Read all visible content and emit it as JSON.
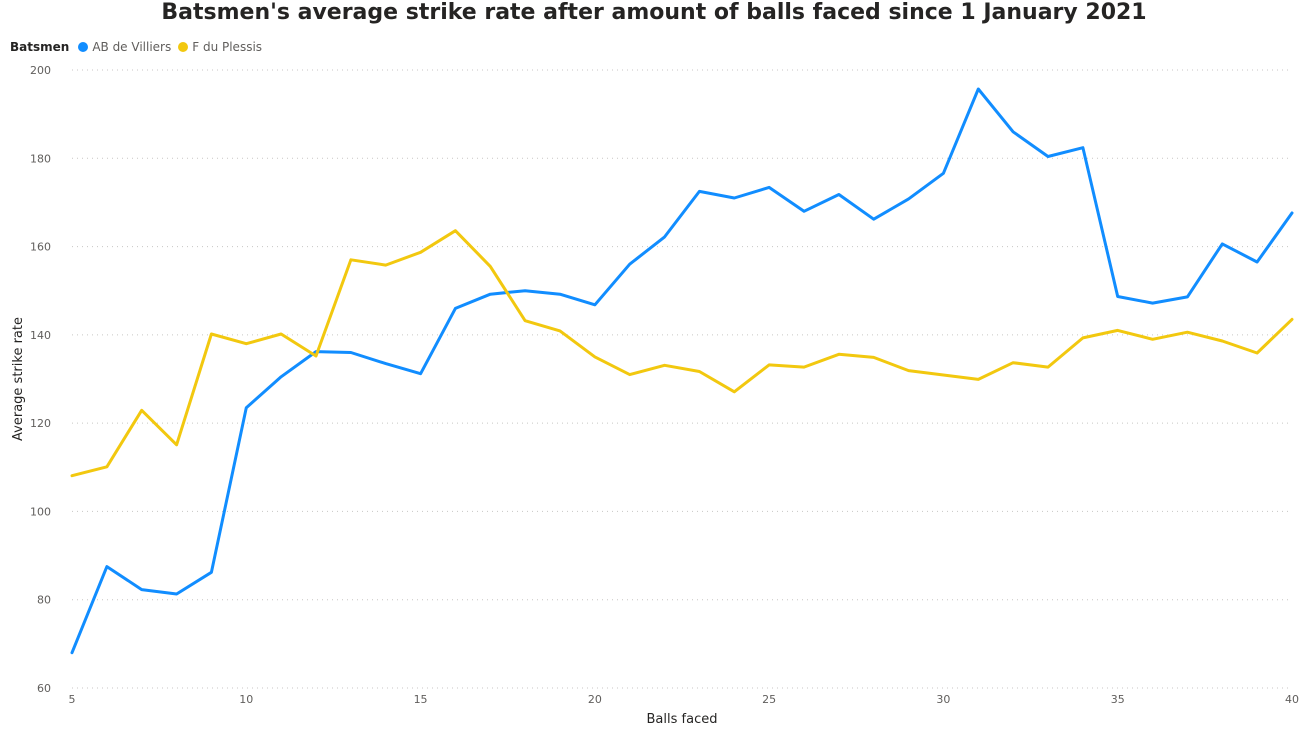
{
  "chart_data": {
    "type": "line",
    "title": "Batsmen's average strike rate after amount of balls faced since 1 January 2021",
    "xlabel": "Balls faced",
    "ylabel": "Average strike rate",
    "legend_title": "Batsmen",
    "legend_position": "top-left",
    "grid": "horizontal-dotted",
    "xlim": [
      5,
      40
    ],
    "ylim": [
      60,
      200
    ],
    "x_ticks": [
      5,
      10,
      15,
      20,
      25,
      30,
      35,
      40
    ],
    "y_ticks": [
      60,
      80,
      100,
      120,
      140,
      160,
      180,
      200
    ],
    "x": [
      5,
      6,
      7,
      8,
      9,
      10,
      11,
      12,
      13,
      14,
      15,
      16,
      17,
      18,
      19,
      20,
      21,
      22,
      23,
      24,
      25,
      26,
      27,
      28,
      29,
      30,
      31,
      32,
      33,
      34,
      35,
      36,
      37,
      38,
      39,
      40
    ],
    "series": [
      {
        "name": "AB de Villiers",
        "color": "#118dff",
        "values": [
          68,
          87.5,
          82.3,
          81.3,
          86.2,
          123.5,
          130.5,
          136.2,
          136,
          133.5,
          131.2,
          146,
          149.2,
          150,
          149.2,
          146.8,
          156,
          162.2,
          172.5,
          171,
          173.4,
          168,
          171.8,
          166.2,
          170.8,
          176.6,
          195.7,
          186,
          180.4,
          182.4,
          148.7,
          147.2,
          148.6,
          160.6,
          156.5,
          167.6
        ]
      },
      {
        "name": "F du Plessis",
        "color": "#f2c80f",
        "values": [
          108.1,
          110.1,
          122.9,
          115.1,
          140.2,
          138,
          140.2,
          135.2,
          157,
          155.8,
          158.7,
          163.6,
          155.5,
          143.2,
          140.9,
          135,
          131,
          133.1,
          131.7,
          127.1,
          133.2,
          132.7,
          135.6,
          134.9,
          131.9,
          130.9,
          129.9,
          133.7,
          132.7,
          139.3,
          141,
          139,
          140.6,
          138.6,
          135.9,
          143.5
        ]
      }
    ]
  }
}
